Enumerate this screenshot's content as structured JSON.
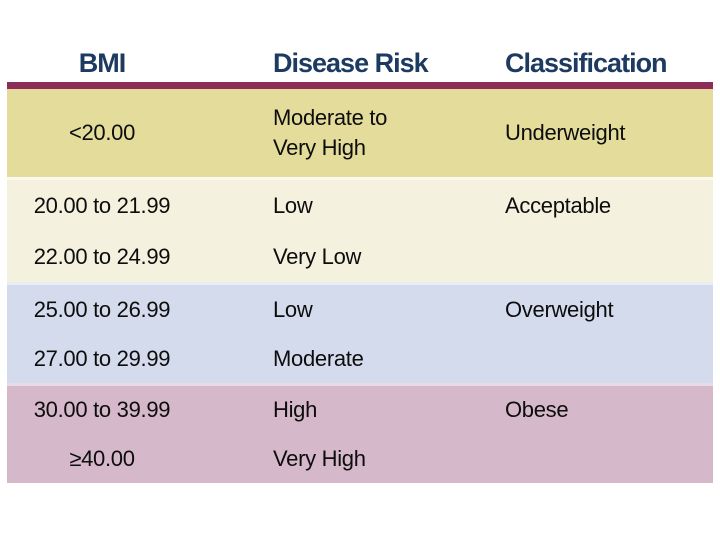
{
  "colors": {
    "header_text": "#1d3a60",
    "divider": "#8c2e57",
    "body_text": "#0d0d0d",
    "section_underweight": "#e4dc9b",
    "section_acceptable": "#f4f1de",
    "section_overweight": "#d3dbec",
    "section_obese": "#d5b8c9"
  },
  "header": {
    "columns": [
      {
        "label": "BMI"
      },
      {
        "label": "Disease Risk"
      },
      {
        "label": "Classification"
      }
    ]
  },
  "sections": [
    {
      "name": "underweight",
      "rows": [
        {
          "bmi": "<20.00",
          "risk": "Moderate to\nVery High",
          "classification": "Underweight"
        }
      ]
    },
    {
      "name": "acceptable",
      "rows": [
        {
          "bmi": "20.00 to 21.99",
          "risk": "Low",
          "classification": "Acceptable"
        },
        {
          "bmi": "22.00 to 24.99",
          "risk": "Very Low",
          "classification": ""
        }
      ]
    },
    {
      "name": "overweight",
      "rows": [
        {
          "bmi": "25.00 to 26.99",
          "risk": "Low",
          "classification": "Overweight"
        },
        {
          "bmi": "27.00 to 29.99",
          "risk": "Moderate",
          "classification": ""
        }
      ]
    },
    {
      "name": "obese",
      "rows": [
        {
          "bmi": "30.00 to 39.99",
          "risk": "High",
          "classification": "Obese"
        },
        {
          "bmi": "≥40.00",
          "risk": "Very High",
          "classification": ""
        }
      ]
    }
  ],
  "chart_data": {
    "type": "table",
    "columns": [
      "BMI",
      "Disease Risk",
      "Classification"
    ],
    "rows": [
      [
        "<20.00",
        "Moderate to Very High",
        "Underweight"
      ],
      [
        "20.00 to 21.99",
        "Low",
        "Acceptable"
      ],
      [
        "22.00 to 24.99",
        "Very Low",
        "Acceptable"
      ],
      [
        "25.00 to 26.99",
        "Low",
        "Overweight"
      ],
      [
        "27.00 to 29.99",
        "Moderate",
        "Overweight"
      ],
      [
        "30.00 to 39.99",
        "High",
        "Obese"
      ],
      [
        "≥40.00",
        "Very High",
        "Obese"
      ]
    ]
  }
}
